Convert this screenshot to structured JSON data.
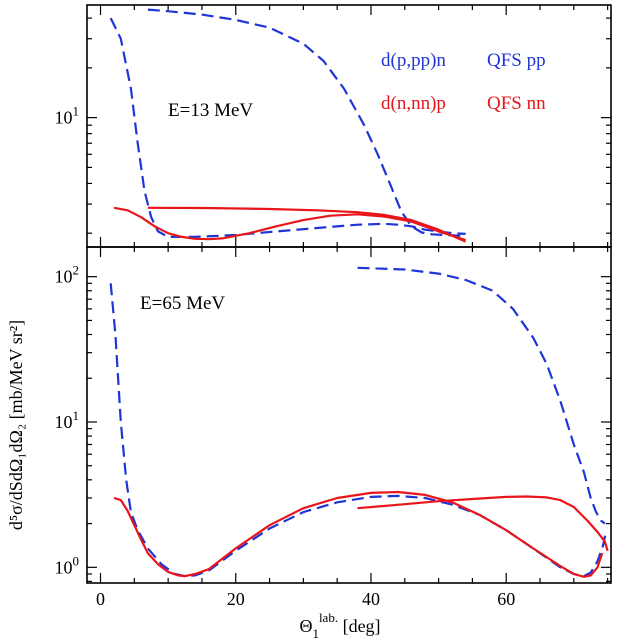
{
  "chart_data": [
    {
      "panel": "top",
      "type": "line",
      "xlim": [
        -2,
        75.5
      ],
      "ylim": [
        1.65,
        48
      ],
      "yscale": "log",
      "grid": false,
      "legend": "top-right",
      "annotation": "E=13 MeV",
      "legend_entries": [
        {
          "reaction": "d(p,pp)n",
          "config": "QFS pp",
          "color": "#1f35d6"
        },
        {
          "reaction": "d(n,nn)p",
          "config": "QFS nn",
          "color": "#e8151a"
        }
      ],
      "yticks": [
        {
          "value": 10,
          "label": "10",
          "sup": "1"
        }
      ],
      "series": [
        {
          "reaction": "d(p,pp)n",
          "style": "dashed",
          "color": "#1f35d6",
          "x": [
            1.5,
            3,
            4.5,
            5.5,
            6.5,
            7.5,
            8.5,
            10,
            14,
            20,
            26,
            32,
            38,
            42,
            44,
            46,
            48,
            50,
            52,
            54
          ],
          "y": [
            40,
            30,
            15,
            7,
            3.6,
            2.5,
            2.05,
            1.9,
            1.9,
            1.95,
            2.05,
            2.15,
            2.25,
            2.28,
            2.25,
            2.2,
            2.1,
            2.05,
            2.0,
            1.98
          ]
        },
        {
          "reaction": "d(p,pp)n",
          "style": "dashed",
          "color": "#1f35d6",
          "x": [
            7,
            10,
            15,
            20,
            25,
            30,
            33,
            36,
            39,
            41,
            43,
            44.5,
            46,
            47.5,
            49,
            51,
            53,
            54
          ],
          "y": [
            45,
            44,
            42,
            39,
            35,
            28,
            22,
            15,
            9,
            6,
            3.8,
            2.7,
            2.2,
            2.02,
            1.97,
            1.95,
            1.93,
            1.92
          ]
        },
        {
          "reaction": "d(n,nn)p",
          "style": "solid",
          "color": "#e8151a",
          "x": [
            2,
            4,
            6,
            8,
            10,
            12,
            14,
            16,
            18,
            22,
            26,
            30,
            34,
            38,
            42,
            46,
            50,
            54
          ],
          "y": [
            2.85,
            2.75,
            2.5,
            2.2,
            2.0,
            1.9,
            1.85,
            1.84,
            1.86,
            2.0,
            2.2,
            2.4,
            2.55,
            2.6,
            2.52,
            2.35,
            2.05,
            1.82
          ]
        },
        {
          "reaction": "d(n,nn)p",
          "style": "solid",
          "color": "#e8151a",
          "x": [
            7,
            15,
            25,
            32,
            38,
            42,
            46,
            50,
            54
          ],
          "y": [
            2.85,
            2.84,
            2.8,
            2.75,
            2.68,
            2.58,
            2.4,
            2.1,
            1.78
          ]
        }
      ]
    },
    {
      "panel": "bottom",
      "type": "line",
      "xlim": [
        -2,
        75.5
      ],
      "ylim": [
        0.78,
        160
      ],
      "yscale": "log",
      "grid": false,
      "annotation": "E=65 MeV",
      "xlabel": {
        "main": "Θ",
        "sub": "1",
        "sup": "lab.",
        "unit": " [deg]"
      },
      "ylabel": "d⁵σ/dSdΩ₁dΩ₂ [mb/MeV sr²]",
      "xticks": [
        0,
        20,
        40,
        60
      ],
      "yticks": [
        {
          "value": 1,
          "label": "10",
          "sup": "0"
        },
        {
          "value": 10,
          "label": "10",
          "sup": "1"
        },
        {
          "value": 100,
          "label": "10",
          "sup": "2"
        }
      ],
      "series": [
        {
          "reaction": "d(p,pp)n",
          "style": "dashed",
          "color": "#1f35d6",
          "x": [
            1.5,
            2.2,
            3,
            3.8,
            4.5,
            5.5,
            7,
            9,
            11,
            12.5,
            14,
            16,
            20,
            25,
            30,
            35,
            40,
            44,
            48,
            52,
            56,
            60,
            64,
            68,
            70,
            71.5,
            72.5,
            73.5,
            74.3,
            74.8
          ],
          "y": [
            90,
            40,
            10,
            4,
            2.4,
            1.8,
            1.35,
            1.05,
            0.9,
            0.87,
            0.88,
            0.95,
            1.3,
            1.85,
            2.4,
            2.8,
            3.05,
            3.1,
            3.0,
            2.7,
            2.3,
            1.8,
            1.35,
            1.0,
            0.9,
            0.87,
            0.92,
            1.1,
            1.4,
            1.8
          ]
        },
        {
          "reaction": "d(p,pp)n",
          "style": "dashed",
          "color": "#1f35d6",
          "x": [
            38,
            45,
            50,
            54,
            58,
            61,
            64,
            66,
            68,
            70,
            71.5,
            72.5,
            73.3,
            74,
            74.6
          ],
          "y": [
            115,
            112,
            105,
            95,
            80,
            60,
            38,
            25,
            14,
            7,
            4.5,
            3,
            2.4,
            2.1,
            2.0
          ]
        },
        {
          "reaction": "d(n,nn)p",
          "style": "solid",
          "color": "#e8151a",
          "x": [
            2,
            3,
            4,
            5,
            6,
            7,
            8.5,
            10,
            11.5,
            12.5,
            14,
            16,
            20,
            25,
            30,
            35,
            40,
            44,
            48,
            52,
            56,
            60,
            64,
            68,
            70,
            71.5,
            72.5,
            73.5,
            74.2
          ],
          "y": [
            3.0,
            2.9,
            2.45,
            1.95,
            1.55,
            1.25,
            1.05,
            0.93,
            0.88,
            0.87,
            0.9,
            0.97,
            1.35,
            1.95,
            2.55,
            3.0,
            3.25,
            3.3,
            3.15,
            2.8,
            2.3,
            1.8,
            1.35,
            1.02,
            0.9,
            0.86,
            0.88,
            1.0,
            1.25
          ]
        },
        {
          "reaction": "d(n,nn)p",
          "style": "solid",
          "color": "#e8151a",
          "x": [
            38,
            45,
            50,
            55,
            60,
            63,
            66,
            68,
            70,
            72,
            73.5,
            74.6,
            75
          ],
          "y": [
            2.55,
            2.72,
            2.85,
            2.95,
            3.05,
            3.07,
            3.03,
            2.9,
            2.6,
            2.1,
            1.75,
            1.5,
            1.3
          ]
        }
      ]
    }
  ]
}
